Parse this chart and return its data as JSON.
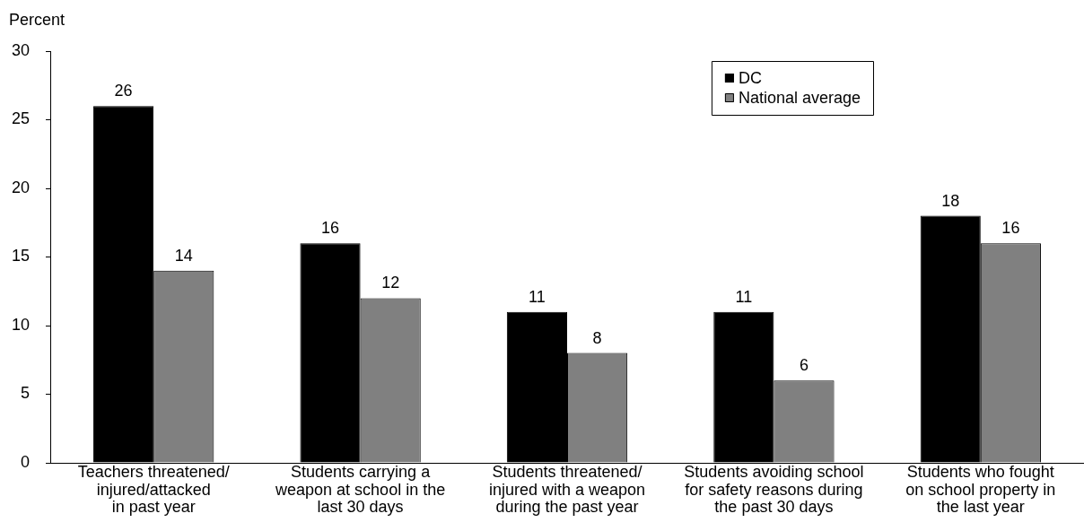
{
  "chart_data": {
    "type": "bar",
    "ylabel": "Percent",
    "categories": [
      "Teachers threatened/\ninjured/attacked\nin past year",
      "Students carrying a\nweapon at school in the\nlast 30 days",
      "Students threatened/\ninjured with a weapon\nduring the past year",
      "Students avoiding school\nfor safety reasons during\nthe past 30 days",
      "Students who fought\non school property in\nthe last year"
    ],
    "series": [
      {
        "name": "DC",
        "color": "#000000",
        "values": [
          26,
          16,
          11,
          11,
          18
        ]
      },
      {
        "name": "National average",
        "color": "#808080",
        "values": [
          14,
          12,
          8,
          6,
          16
        ]
      }
    ],
    "ylim": [
      0,
      30
    ],
    "yticks": [
      0,
      5,
      10,
      15,
      20,
      25,
      30
    ],
    "legend": "top right",
    "data_labels": true
  }
}
